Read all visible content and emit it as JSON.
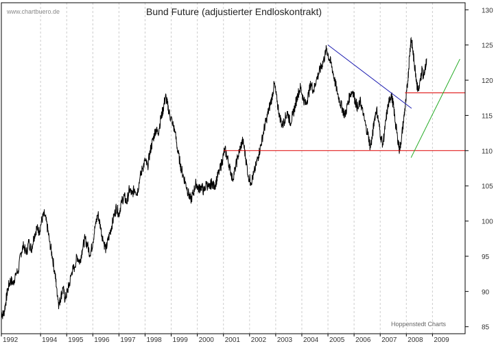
{
  "chart_data": {
    "type": "line",
    "title": "Bund Future (adjustierter Endloskontrakt)",
    "watermark": "www.chartbuero.de",
    "credit": "Hoppenstedt Charts",
    "xlabel": "",
    "ylabel": "",
    "x_range": [
      1992.0,
      2009.75
    ],
    "y_range": [
      84,
      131
    ],
    "y_ticks": [
      85,
      90,
      95,
      100,
      105,
      110,
      115,
      120,
      125,
      130
    ],
    "y_axis_side": "right",
    "x_tick_labels": [
      {
        "label": "1992",
        "x": 1992.0
      },
      {
        "label": "1994",
        "x": 1993.5
      },
      {
        "label": "1995",
        "x": 1994.5
      },
      {
        "label": "1996",
        "x": 1995.5
      },
      {
        "label": "1997",
        "x": 1996.5
      },
      {
        "label": "1998",
        "x": 1997.5
      },
      {
        "label": "1999",
        "x": 1998.5
      },
      {
        "label": "2000",
        "x": 1999.5
      },
      {
        "label": "2001",
        "x": 2000.5
      },
      {
        "label": "2002",
        "x": 2001.5
      },
      {
        "label": "2003",
        "x": 2002.5
      },
      {
        "label": "2004",
        "x": 2003.5
      },
      {
        "label": "2005",
        "x": 2004.5
      },
      {
        "label": "2006",
        "x": 2005.5
      },
      {
        "label": "2007",
        "x": 2006.5
      },
      {
        "label": "2008",
        "x": 2007.5
      },
      {
        "label": "2009",
        "x": 2008.5
      }
    ],
    "grid": "vertical dashed",
    "colors": {
      "price": "#000000",
      "support_line": "#dd0000",
      "downtrend_line": "#1a1ab0",
      "uptrend_line": "#22aa22",
      "grid": "#cccccc",
      "axis": "#000000"
    },
    "series": [
      {
        "values": [
          [
            1992.0,
            87.0
          ],
          [
            1992.08,
            86.6
          ],
          [
            1992.17,
            88.5
          ],
          [
            1992.25,
            90.5
          ],
          [
            1992.35,
            91.6
          ],
          [
            1992.45,
            91.2
          ],
          [
            1992.55,
            92.5
          ],
          [
            1992.65,
            93.0
          ],
          [
            1992.75,
            95.5
          ],
          [
            1992.85,
            96.5
          ],
          [
            1992.95,
            95.3
          ],
          [
            1993.05,
            97.0
          ],
          [
            1993.15,
            96.0
          ],
          [
            1993.25,
            97.8
          ],
          [
            1993.35,
            99.0
          ],
          [
            1993.45,
            98.5
          ],
          [
            1993.55,
            100.2
          ],
          [
            1993.65,
            101.0
          ],
          [
            1993.75,
            99.3
          ],
          [
            1993.85,
            97.0
          ],
          [
            1993.95,
            95.0
          ],
          [
            1994.05,
            92.5
          ],
          [
            1994.12,
            90.5
          ],
          [
            1994.2,
            88.0
          ],
          [
            1994.28,
            89.3
          ],
          [
            1994.36,
            90.5
          ],
          [
            1994.44,
            88.8
          ],
          [
            1994.52,
            90.0
          ],
          [
            1994.6,
            91.0
          ],
          [
            1994.7,
            92.8
          ],
          [
            1994.8,
            93.5
          ],
          [
            1994.9,
            95.0
          ],
          [
            1995.0,
            94.2
          ],
          [
            1995.1,
            96.0
          ],
          [
            1995.2,
            97.5
          ],
          [
            1995.3,
            96.5
          ],
          [
            1995.4,
            95.2
          ],
          [
            1995.5,
            97.0
          ],
          [
            1995.6,
            99.5
          ],
          [
            1995.7,
            101.0
          ],
          [
            1995.8,
            99.0
          ],
          [
            1995.9,
            97.2
          ],
          [
            1996.0,
            96.0
          ],
          [
            1996.1,
            97.5
          ],
          [
            1996.2,
            99.0
          ],
          [
            1996.3,
            100.5
          ],
          [
            1996.4,
            102.0
          ],
          [
            1996.5,
            101.0
          ],
          [
            1996.6,
            102.8
          ],
          [
            1996.7,
            103.5
          ],
          [
            1996.8,
            102.6
          ],
          [
            1996.9,
            104.5
          ],
          [
            1997.0,
            103.8
          ],
          [
            1997.1,
            104.6
          ],
          [
            1997.2,
            104.0
          ],
          [
            1997.3,
            106.0
          ],
          [
            1997.4,
            107.5
          ],
          [
            1997.5,
            108.5
          ],
          [
            1997.6,
            107.8
          ],
          [
            1997.7,
            110.0
          ],
          [
            1997.8,
            111.5
          ],
          [
            1997.9,
            113.0
          ],
          [
            1998.0,
            112.5
          ],
          [
            1998.1,
            114.5
          ],
          [
            1998.2,
            116.0
          ],
          [
            1998.28,
            117.8
          ],
          [
            1998.36,
            116.5
          ],
          [
            1998.45,
            115.0
          ],
          [
            1998.55,
            114.0
          ],
          [
            1998.65,
            112.5
          ],
          [
            1998.75,
            110.0
          ],
          [
            1998.85,
            108.0
          ],
          [
            1998.95,
            106.5
          ],
          [
            1999.05,
            105.5
          ],
          [
            1999.15,
            104.0
          ],
          [
            1999.25,
            103.0
          ],
          [
            1999.35,
            104.0
          ],
          [
            1999.45,
            105.5
          ],
          [
            1999.55,
            104.5
          ],
          [
            1999.65,
            105.0
          ],
          [
            1999.75,
            104.2
          ],
          [
            1999.85,
            105.3
          ],
          [
            1999.95,
            104.6
          ],
          [
            2000.05,
            105.5
          ],
          [
            2000.15,
            104.8
          ],
          [
            2000.25,
            106.0
          ],
          [
            2000.35,
            107.2
          ],
          [
            2000.45,
            108.5
          ],
          [
            2000.55,
            110.2
          ],
          [
            2000.65,
            109.0
          ],
          [
            2000.75,
            107.5
          ],
          [
            2000.85,
            106.0
          ],
          [
            2000.95,
            107.5
          ],
          [
            2001.05,
            109.0
          ],
          [
            2001.15,
            110.5
          ],
          [
            2001.25,
            111.5
          ],
          [
            2001.35,
            109.0
          ],
          [
            2001.45,
            106.5
          ],
          [
            2001.55,
            105.5
          ],
          [
            2001.65,
            106.5
          ],
          [
            2001.75,
            108.0
          ],
          [
            2001.85,
            109.5
          ],
          [
            2001.95,
            111.0
          ],
          [
            2002.05,
            113.0
          ],
          [
            2002.15,
            114.5
          ],
          [
            2002.25,
            116.0
          ],
          [
            2002.35,
            117.5
          ],
          [
            2002.45,
            119.5
          ],
          [
            2002.55,
            117.0
          ],
          [
            2002.65,
            115.0
          ],
          [
            2002.75,
            113.5
          ],
          [
            2002.85,
            114.5
          ],
          [
            2002.95,
            115.5
          ],
          [
            2003.05,
            114.0
          ],
          [
            2003.15,
            115.0
          ],
          [
            2003.25,
            116.5
          ],
          [
            2003.35,
            118.0
          ],
          [
            2003.45,
            119.0
          ],
          [
            2003.55,
            117.5
          ],
          [
            2003.65,
            116.5
          ],
          [
            2003.75,
            118.0
          ],
          [
            2003.85,
            119.5
          ],
          [
            2003.95,
            118.5
          ],
          [
            2004.05,
            120.0
          ],
          [
            2004.15,
            121.0
          ],
          [
            2004.25,
            122.0
          ],
          [
            2004.35,
            123.0
          ],
          [
            2004.45,
            124.5
          ],
          [
            2004.55,
            123.0
          ],
          [
            2004.65,
            122.0
          ],
          [
            2004.75,
            120.0
          ],
          [
            2004.85,
            118.5
          ],
          [
            2004.95,
            117.0
          ],
          [
            2005.05,
            116.0
          ],
          [
            2005.15,
            115.0
          ],
          [
            2005.25,
            116.5
          ],
          [
            2005.35,
            118.0
          ],
          [
            2005.45,
            118.5
          ],
          [
            2005.55,
            117.0
          ],
          [
            2005.65,
            116.0
          ],
          [
            2005.75,
            117.0
          ],
          [
            2005.85,
            115.0
          ],
          [
            2005.95,
            113.5
          ],
          [
            2006.05,
            112.0
          ],
          [
            2006.12,
            110.5
          ],
          [
            2006.2,
            112.0
          ],
          [
            2006.28,
            114.5
          ],
          [
            2006.36,
            116.0
          ],
          [
            2006.44,
            114.0
          ],
          [
            2006.52,
            112.0
          ],
          [
            2006.6,
            111.0
          ],
          [
            2006.68,
            113.0
          ],
          [
            2006.76,
            115.5
          ],
          [
            2006.84,
            117.0
          ],
          [
            2006.92,
            118.0
          ],
          [
            2007.0,
            116.5
          ],
          [
            2007.08,
            114.0
          ],
          [
            2007.16,
            112.0
          ],
          [
            2007.24,
            110.0
          ],
          [
            2007.32,
            112.0
          ],
          [
            2007.4,
            114.5
          ],
          [
            2007.48,
            117.0
          ],
          [
            2007.56,
            120.0
          ],
          [
            2007.62,
            123.5
          ],
          [
            2007.68,
            126.0
          ],
          [
            2007.74,
            124.5
          ],
          [
            2007.8,
            122.5
          ],
          [
            2007.86,
            121.0
          ],
          [
            2007.92,
            119.0
          ],
          [
            2007.98,
            118.5
          ],
          [
            2008.04,
            120.0
          ],
          [
            2008.1,
            121.5
          ],
          [
            2008.16,
            120.5
          ],
          [
            2008.22,
            122.0
          ],
          [
            2008.28,
            123.0
          ]
        ]
      }
    ],
    "annotations": {
      "support_line_110": {
        "from": [
          2000.5,
          110.0
        ],
        "to": [
          2009.75,
          110.0
        ]
      },
      "resistance_line_118": {
        "from": [
          2007.45,
          118.2
        ],
        "to": [
          2009.75,
          118.2
        ]
      },
      "downtrend_line": {
        "from": [
          2004.5,
          125.0
        ],
        "to": [
          2007.7,
          116.0
        ]
      },
      "uptrend_line": {
        "from": [
          2007.68,
          109.0
        ],
        "to": [
          2009.55,
          123.0
        ]
      }
    }
  }
}
